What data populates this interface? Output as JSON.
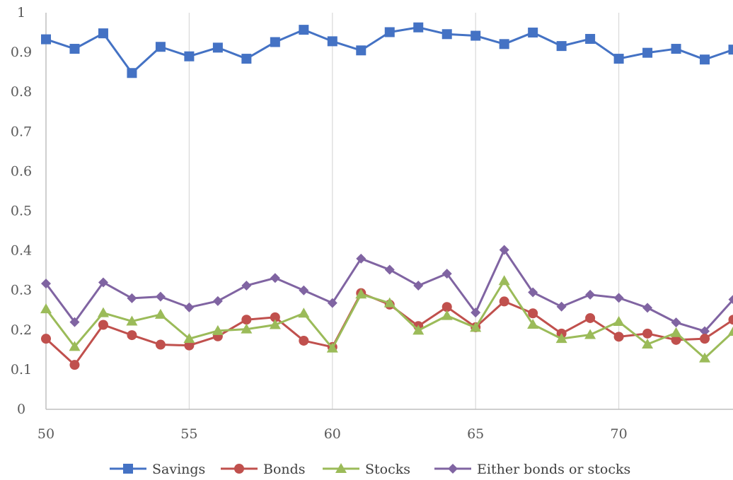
{
  "chart_data": {
    "type": "line",
    "title": "",
    "xlabel": "",
    "ylabel": "",
    "x": [
      50,
      51,
      52,
      53,
      54,
      55,
      56,
      57,
      58,
      59,
      60,
      61,
      62,
      63,
      64,
      65,
      66,
      67,
      68,
      69,
      70,
      71,
      72,
      73,
      74
    ],
    "xlim": [
      50,
      74
    ],
    "ylim": [
      0,
      1
    ],
    "x_ticks": [
      "50",
      "55",
      "60",
      "65",
      "70"
    ],
    "y_ticks": [
      "0",
      "0.1",
      "0.2",
      "0.3",
      "0.4",
      "0.5",
      "0.6",
      "0.7",
      "0.8",
      "0.9",
      "1"
    ],
    "grid": "vertical",
    "legend_position": "bottom",
    "series": [
      {
        "name": "Savings",
        "color": "#4472C4",
        "marker": "square",
        "values": [
          0.933,
          0.909,
          0.948,
          0.848,
          0.914,
          0.89,
          0.912,
          0.884,
          0.926,
          0.957,
          0.928,
          0.905,
          0.951,
          0.963,
          0.946,
          0.942,
          0.921,
          0.95,
          0.916,
          0.934,
          0.884,
          0.899,
          0.909,
          0.882,
          0.907
        ]
      },
      {
        "name": "Bonds",
        "color": "#C0504D",
        "marker": "circle",
        "values": [
          0.178,
          0.112,
          0.213,
          0.187,
          0.163,
          0.161,
          0.184,
          0.226,
          0.232,
          0.173,
          0.157,
          0.293,
          0.264,
          0.21,
          0.258,
          0.207,
          0.272,
          0.242,
          0.191,
          0.23,
          0.183,
          0.191,
          0.175,
          0.178,
          0.226
        ]
      },
      {
        "name": "Stocks",
        "color": "#9BBB59",
        "marker": "triangle",
        "values": [
          0.253,
          0.158,
          0.243,
          0.222,
          0.239,
          0.178,
          0.198,
          0.202,
          0.213,
          0.242,
          0.154,
          0.29,
          0.268,
          0.199,
          0.236,
          0.206,
          0.324,
          0.214,
          0.178,
          0.188,
          0.221,
          0.164,
          0.193,
          0.129,
          0.196
        ]
      },
      {
        "name": "Either bonds or stocks",
        "color": "#8064A2",
        "marker": "diamond",
        "values": [
          0.317,
          0.22,
          0.32,
          0.28,
          0.284,
          0.257,
          0.273,
          0.312,
          0.331,
          0.3,
          0.268,
          0.38,
          0.352,
          0.312,
          0.342,
          0.244,
          0.402,
          0.295,
          0.259,
          0.289,
          0.281,
          0.256,
          0.219,
          0.197,
          0.277
        ]
      }
    ]
  }
}
